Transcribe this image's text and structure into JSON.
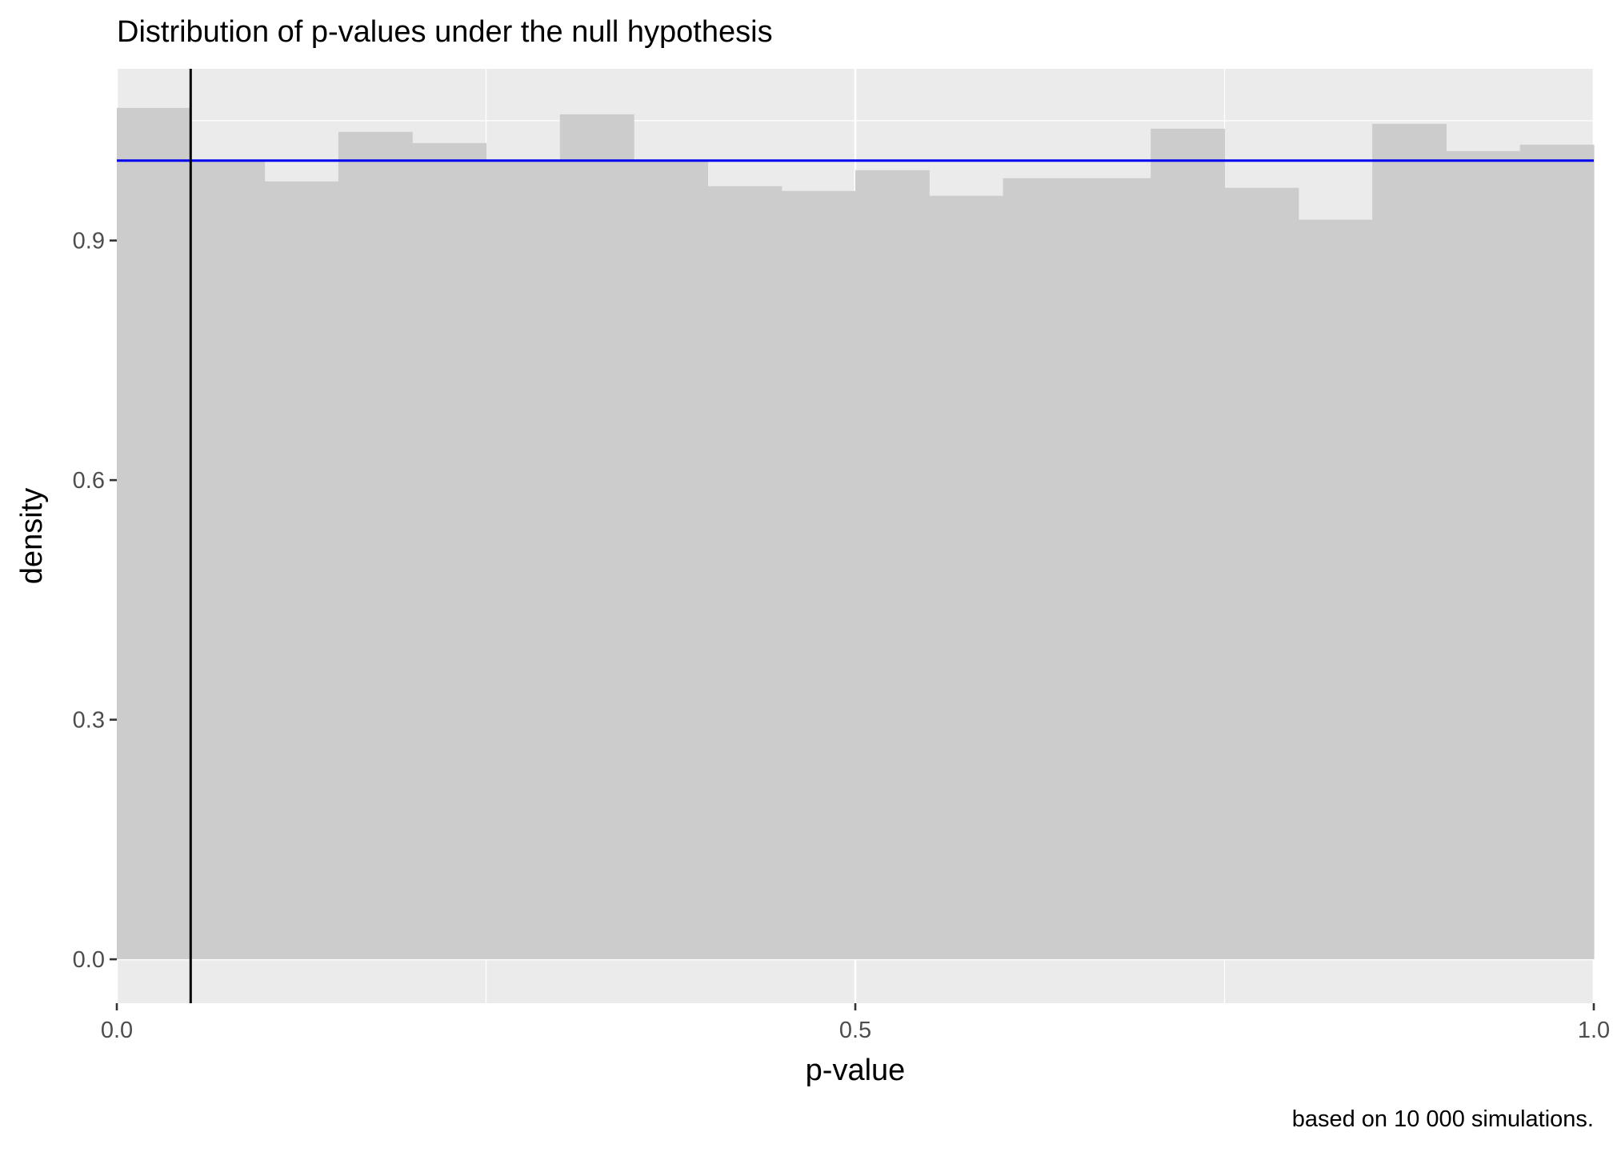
{
  "chart_data": {
    "type": "bar",
    "subtype": "histogram",
    "title": "Distribution of p-values under the null hypothesis",
    "xlabel": "p-value",
    "ylabel": "density",
    "caption": "based on 10 000 simulations.",
    "xlim": [
      0,
      1
    ],
    "ylim": [
      -0.055,
      1.115
    ],
    "x_ticks": [
      0.0,
      0.5,
      1.0
    ],
    "x_tick_labels": [
      "0.0",
      "0.5",
      "1.0"
    ],
    "y_ticks": [
      0.0,
      0.3,
      0.6,
      0.9
    ],
    "y_tick_labels": [
      "0.0",
      "0.3",
      "0.6",
      "0.9"
    ],
    "grid": true,
    "bin_width": 0.05,
    "bins": [
      {
        "x_start": 0.0,
        "x_end": 0.05,
        "density": 1.066
      },
      {
        "x_start": 0.05,
        "x_end": 0.1,
        "density": 1.0
      },
      {
        "x_start": 0.1,
        "x_end": 0.15,
        "density": 0.974
      },
      {
        "x_start": 0.15,
        "x_end": 0.2,
        "density": 1.036
      },
      {
        "x_start": 0.2,
        "x_end": 0.25,
        "density": 1.022
      },
      {
        "x_start": 0.25,
        "x_end": 0.3,
        "density": 1.0
      },
      {
        "x_start": 0.3,
        "x_end": 0.35,
        "density": 1.058
      },
      {
        "x_start": 0.35,
        "x_end": 0.4,
        "density": 1.0
      },
      {
        "x_start": 0.4,
        "x_end": 0.45,
        "density": 0.968
      },
      {
        "x_start": 0.45,
        "x_end": 0.5,
        "density": 0.962
      },
      {
        "x_start": 0.5,
        "x_end": 0.55,
        "density": 0.988
      },
      {
        "x_start": 0.55,
        "x_end": 0.6,
        "density": 0.956
      },
      {
        "x_start": 0.6,
        "x_end": 0.65,
        "density": 0.978
      },
      {
        "x_start": 0.65,
        "x_end": 0.7,
        "density": 0.978
      },
      {
        "x_start": 0.7,
        "x_end": 0.75,
        "density": 1.04
      },
      {
        "x_start": 0.75,
        "x_end": 0.8,
        "density": 0.966
      },
      {
        "x_start": 0.8,
        "x_end": 0.85,
        "density": 0.926
      },
      {
        "x_start": 0.85,
        "x_end": 0.9,
        "density": 1.046
      },
      {
        "x_start": 0.9,
        "x_end": 0.95,
        "density": 1.012
      },
      {
        "x_start": 0.95,
        "x_end": 1.0,
        "density": 1.02
      }
    ],
    "reference_lines": [
      {
        "orientation": "horizontal",
        "value": 1.0,
        "color": "#0000ee"
      },
      {
        "orientation": "vertical",
        "value": 0.05,
        "color": "#000000"
      }
    ],
    "colors": {
      "panel_background": "#ebebeb",
      "grid_major": "#ffffff",
      "bar_fill": "#cccccc",
      "tick_label": "#4d4d4d",
      "axis_tick": "#333333"
    }
  }
}
